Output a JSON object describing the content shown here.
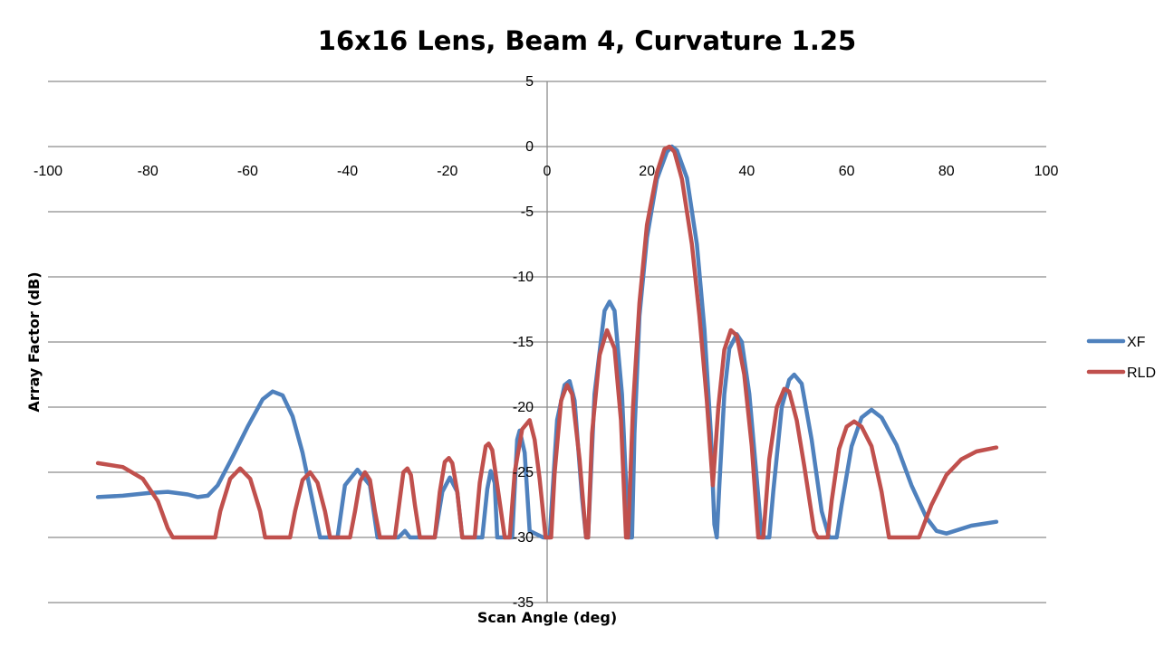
{
  "chart_data": {
    "type": "line",
    "title": "16x16 Lens, Beam 4, Curvature 1.25",
    "xlabel": "Scan Angle (deg)",
    "ylabel": "Array Factor (dB)",
    "xlim": [
      -100,
      100
    ],
    "ylim": [
      -35,
      5
    ],
    "x_ticks": [
      -100,
      -80,
      -60,
      -40,
      -20,
      0,
      20,
      40,
      60,
      80,
      100
    ],
    "y_ticks": [
      5,
      0,
      -5,
      -10,
      -15,
      -20,
      -25,
      -30,
      -35
    ],
    "grid": "horizontal",
    "legend_position": "right",
    "series": [
      {
        "name": "XF",
        "color": "#4f81bd",
        "points": [
          [
            -90,
            -26.9
          ],
          [
            -85,
            -26.8
          ],
          [
            -80,
            -26.6
          ],
          [
            -76,
            -26.5
          ],
          [
            -72,
            -26.7
          ],
          [
            -70,
            -26.9
          ],
          [
            -68,
            -26.8
          ],
          [
            -66,
            -26.0
          ],
          [
            -63,
            -23.8
          ],
          [
            -60,
            -21.5
          ],
          [
            -57,
            -19.4
          ],
          [
            -55,
            -18.8
          ],
          [
            -53,
            -19.1
          ],
          [
            -51,
            -20.7
          ],
          [
            -49,
            -23.5
          ],
          [
            -47,
            -27.2
          ],
          [
            -45.5,
            -30
          ],
          [
            -42,
            -30
          ],
          [
            -40.5,
            -26.0
          ],
          [
            -38,
            -24.8
          ],
          [
            -35.5,
            -26.0
          ],
          [
            -34,
            -30
          ],
          [
            -29.8,
            -30
          ],
          [
            -28.5,
            -29.5
          ],
          [
            -27.5,
            -30
          ],
          [
            -22.5,
            -30
          ],
          [
            -21,
            -26.5
          ],
          [
            -19.5,
            -25.4
          ],
          [
            -18,
            -26.5
          ],
          [
            -17,
            -30
          ],
          [
            -13,
            -30
          ],
          [
            -12,
            -26.3
          ],
          [
            -11.3,
            -24.9
          ],
          [
            -10.5,
            -25.8
          ],
          [
            -10,
            -30
          ],
          [
            -7,
            -30
          ],
          [
            -6,
            -22.5
          ],
          [
            -5.5,
            -21.8
          ],
          [
            -4.5,
            -23.5
          ],
          [
            -3.5,
            -29.5
          ],
          [
            -0.8,
            -30
          ],
          [
            0.5,
            -30
          ],
          [
            2,
            -21
          ],
          [
            3.5,
            -18.3
          ],
          [
            4.5,
            -18.0
          ],
          [
            5.5,
            -19.5
          ],
          [
            7,
            -27
          ],
          [
            7.8,
            -30
          ],
          [
            8.2,
            -30
          ],
          [
            9.5,
            -19
          ],
          [
            11.5,
            -12.6
          ],
          [
            12.5,
            -11.9
          ],
          [
            13.5,
            -12.6
          ],
          [
            15,
            -19
          ],
          [
            16.3,
            -30
          ],
          [
            17,
            -30
          ],
          [
            17.5,
            -22
          ],
          [
            18.5,
            -13
          ],
          [
            20,
            -7
          ],
          [
            22,
            -2.5
          ],
          [
            24,
            -0.4
          ],
          [
            25,
            0
          ],
          [
            26,
            -0.3
          ],
          [
            28,
            -2.4
          ],
          [
            30,
            -7.5
          ],
          [
            31.5,
            -14
          ],
          [
            32.8,
            -22
          ],
          [
            33.5,
            -29
          ],
          [
            34,
            -30
          ],
          [
            34.5,
            -26
          ],
          [
            35.5,
            -19
          ],
          [
            36.5,
            -15.5
          ],
          [
            38,
            -14.4
          ],
          [
            39,
            -15
          ],
          [
            40.5,
            -19
          ],
          [
            42,
            -25.5
          ],
          [
            43,
            -30
          ],
          [
            44.5,
            -30
          ],
          [
            45.3,
            -26.5
          ],
          [
            47,
            -20
          ],
          [
            48.5,
            -17.9
          ],
          [
            49.5,
            -17.5
          ],
          [
            51,
            -18.2
          ],
          [
            53,
            -22.5
          ],
          [
            55,
            -28
          ],
          [
            56.5,
            -30
          ],
          [
            58,
            -30
          ],
          [
            59,
            -27.5
          ],
          [
            61,
            -23
          ],
          [
            63,
            -20.8
          ],
          [
            65,
            -20.2
          ],
          [
            67,
            -20.8
          ],
          [
            70,
            -22.9
          ],
          [
            73,
            -26
          ],
          [
            76,
            -28.5
          ],
          [
            78,
            -29.5
          ],
          [
            80,
            -29.7
          ],
          [
            85,
            -29.1
          ],
          [
            90,
            -28.8
          ]
        ]
      },
      {
        "name": "RLD",
        "color": "#c0504d",
        "points": [
          [
            -90,
            -24.3
          ],
          [
            -85,
            -24.6
          ],
          [
            -81,
            -25.5
          ],
          [
            -78,
            -27.2
          ],
          [
            -76,
            -29.3
          ],
          [
            -75,
            -30
          ],
          [
            -66.5,
            -30
          ],
          [
            -65.5,
            -28
          ],
          [
            -63.5,
            -25.5
          ],
          [
            -61.5,
            -24.7
          ],
          [
            -59.5,
            -25.5
          ],
          [
            -57.5,
            -28
          ],
          [
            -56.5,
            -30
          ],
          [
            -51.5,
            -30
          ],
          [
            -50.5,
            -28
          ],
          [
            -49,
            -25.6
          ],
          [
            -47.5,
            -25.0
          ],
          [
            -46,
            -25.8
          ],
          [
            -44.5,
            -28
          ],
          [
            -43.5,
            -30
          ],
          [
            -39.5,
            -30
          ],
          [
            -38.5,
            -28
          ],
          [
            -37.5,
            -25.7
          ],
          [
            -36.5,
            -25.0
          ],
          [
            -35.5,
            -25.6
          ],
          [
            -34.5,
            -28
          ],
          [
            -33.5,
            -30
          ],
          [
            -30.5,
            -30
          ],
          [
            -29.5,
            -27
          ],
          [
            -28.8,
            -25.0
          ],
          [
            -28,
            -24.7
          ],
          [
            -27.3,
            -25.2
          ],
          [
            -26.5,
            -27.5
          ],
          [
            -25.5,
            -30
          ],
          [
            -22.5,
            -30
          ],
          [
            -21.5,
            -26.5
          ],
          [
            -20.5,
            -24.2
          ],
          [
            -19.7,
            -23.9
          ],
          [
            -19,
            -24.3
          ],
          [
            -18,
            -26.5
          ],
          [
            -17,
            -30
          ],
          [
            -14.5,
            -30
          ],
          [
            -13.5,
            -25.8
          ],
          [
            -12.3,
            -23.0
          ],
          [
            -11.7,
            -22.8
          ],
          [
            -11,
            -23.3
          ],
          [
            -9.8,
            -26.5
          ],
          [
            -8.5,
            -30
          ],
          [
            -7.5,
            -30
          ],
          [
            -6.5,
            -25
          ],
          [
            -5,
            -21.7
          ],
          [
            -3.5,
            -21.0
          ],
          [
            -2.5,
            -22.5
          ],
          [
            -1.5,
            -25.5
          ],
          [
            -0.3,
            -30
          ],
          [
            0.8,
            -30
          ],
          [
            1.5,
            -25
          ],
          [
            2.8,
            -19.5
          ],
          [
            4,
            -18.3
          ],
          [
            5,
            -19
          ],
          [
            6.5,
            -24
          ],
          [
            7.8,
            -30
          ],
          [
            8.2,
            -30
          ],
          [
            9,
            -22
          ],
          [
            10.5,
            -16
          ],
          [
            12,
            -14.1
          ],
          [
            13.5,
            -15.5
          ],
          [
            14.8,
            -21
          ],
          [
            15.8,
            -30
          ],
          [
            16.2,
            -30
          ],
          [
            17.2,
            -20
          ],
          [
            18.5,
            -12
          ],
          [
            20,
            -6
          ],
          [
            22,
            -2
          ],
          [
            23.5,
            -0.2
          ],
          [
            24.5,
            0
          ],
          [
            25.5,
            -0.4
          ],
          [
            27,
            -2.5
          ],
          [
            29,
            -7.5
          ],
          [
            30.5,
            -13
          ],
          [
            32,
            -19.5
          ],
          [
            33.2,
            -26
          ],
          [
            34.3,
            -20
          ],
          [
            35.5,
            -15.6
          ],
          [
            36.8,
            -14.1
          ],
          [
            38,
            -14.5
          ],
          [
            39.5,
            -17.5
          ],
          [
            41,
            -23
          ],
          [
            42.3,
            -30
          ],
          [
            43.3,
            -30
          ],
          [
            44.5,
            -24
          ],
          [
            46,
            -20
          ],
          [
            47.5,
            -18.6
          ],
          [
            48.5,
            -18.8
          ],
          [
            50,
            -21
          ],
          [
            51.5,
            -24.5
          ],
          [
            53.5,
            -29.5
          ],
          [
            54.2,
            -30
          ],
          [
            56.2,
            -30
          ],
          [
            57,
            -27.2
          ],
          [
            58.5,
            -23.2
          ],
          [
            60,
            -21.5
          ],
          [
            61.5,
            -21.1
          ],
          [
            63,
            -21.5
          ],
          [
            65,
            -23
          ],
          [
            67,
            -26.5
          ],
          [
            68.5,
            -30
          ],
          [
            74.5,
            -30
          ],
          [
            77,
            -27.5
          ],
          [
            80,
            -25.2
          ],
          [
            83,
            -24
          ],
          [
            86,
            -23.4
          ],
          [
            90,
            -23.1
          ]
        ]
      }
    ]
  }
}
